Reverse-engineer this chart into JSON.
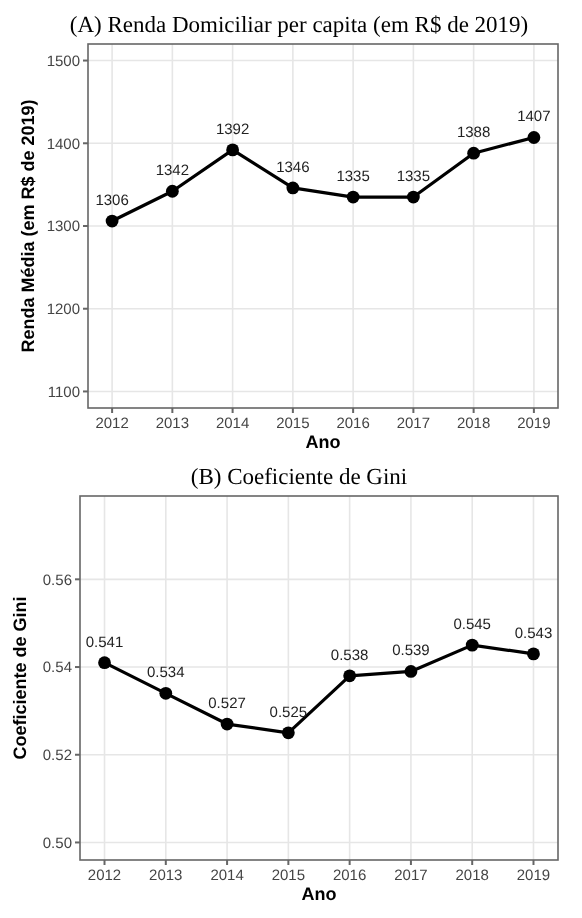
{
  "chart_data": [
    {
      "type": "line",
      "title": "(A) Renda Domiciliar per capita (em R$ de 2019)",
      "xlabel": "Ano",
      "ylabel": "Renda Média (em R$ de 2019)",
      "x": [
        2012,
        2013,
        2014,
        2015,
        2016,
        2017,
        2018,
        2019
      ],
      "series": [
        {
          "color": "#000000",
          "values": [
            1306,
            1342,
            1392,
            1346,
            1335,
            1335,
            1388,
            1407
          ]
        }
      ],
      "xlim": [
        2011.6,
        2019.4
      ],
      "xticks": [
        2012,
        2013,
        2014,
        2015,
        2016,
        2017,
        2018,
        2019
      ],
      "ylim": [
        1080,
        1520
      ],
      "yticks": [
        1100,
        1200,
        1300,
        1400,
        1500
      ],
      "grid": true,
      "marker": "circle",
      "line_style": "solid",
      "data_labels": true
    },
    {
      "type": "line",
      "title": "(B) Coeficiente de Gini",
      "xlabel": "Ano",
      "ylabel": "Coeficiente de Gini",
      "x": [
        2012,
        2013,
        2014,
        2015,
        2016,
        2017,
        2018,
        2019
      ],
      "series": [
        {
          "color": "#000000",
          "values": [
            0.541,
            0.534,
            0.527,
            0.525,
            0.538,
            0.539,
            0.545,
            0.543
          ]
        }
      ],
      "xlim": [
        2011.6,
        2019.4
      ],
      "xticks": [
        2012,
        2013,
        2014,
        2015,
        2016,
        2017,
        2018,
        2019
      ],
      "ylim": [
        0.496,
        0.579
      ],
      "yticks": [
        {
          "value": 0.5,
          "label": "0.50"
        },
        0.52,
        0.54,
        0.56
      ],
      "grid": true,
      "marker": "circle",
      "line_style": "solid",
      "data_labels": true
    }
  ]
}
